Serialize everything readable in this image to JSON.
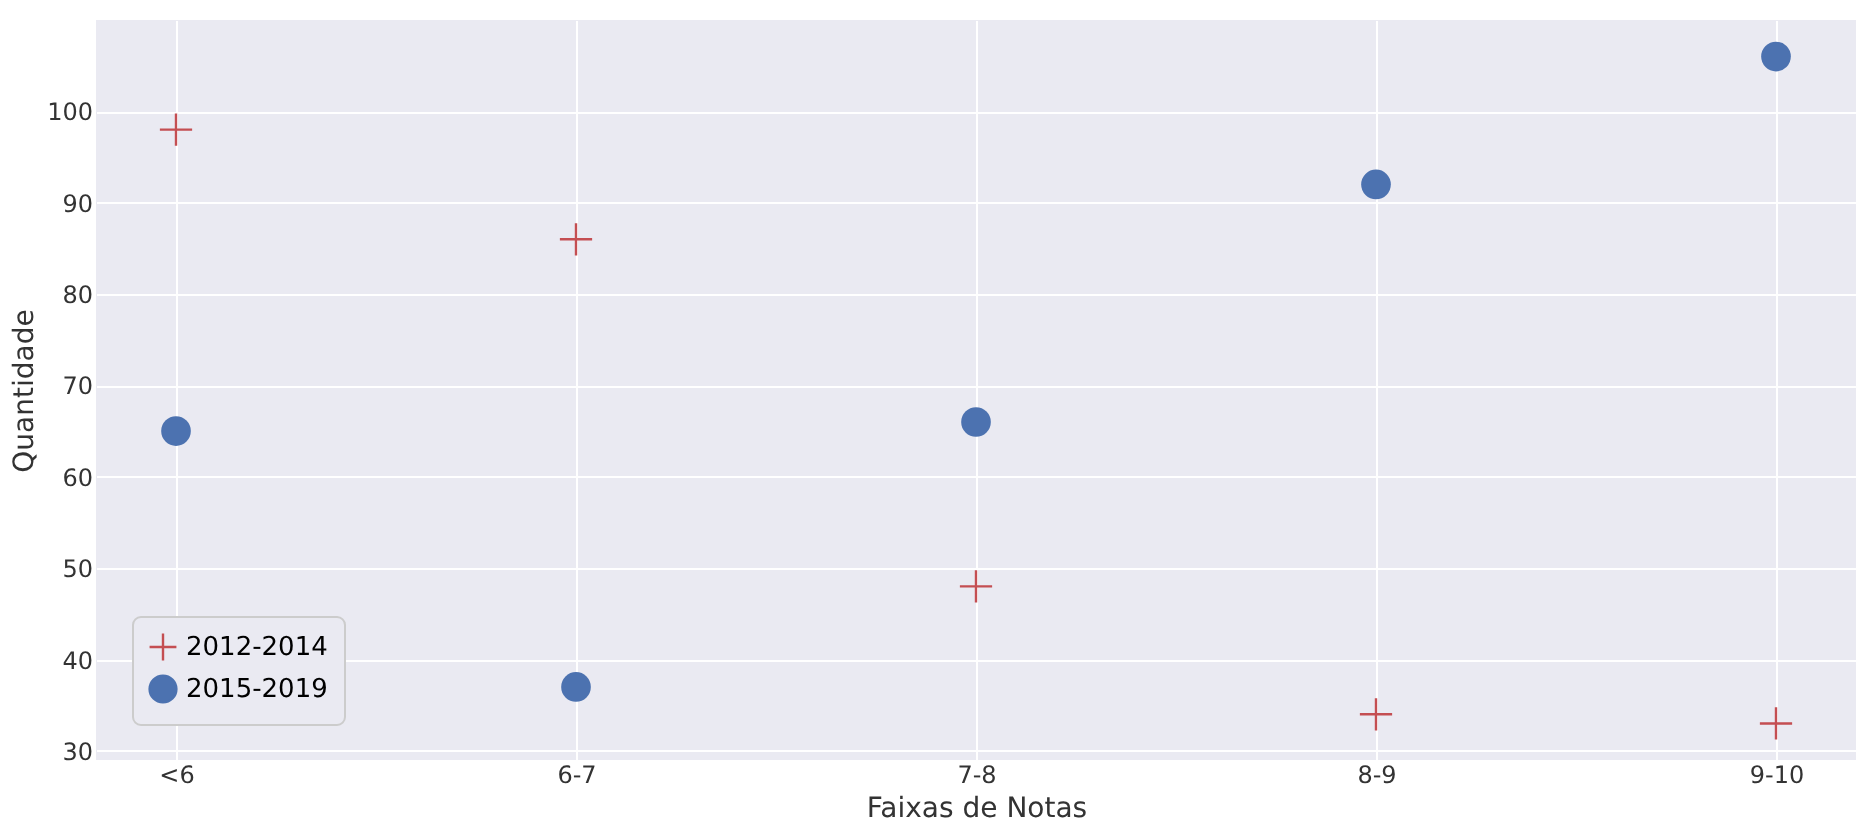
{
  "chart_data": {
    "type": "scatter",
    "xlabel": "Faixas de Notas",
    "ylabel": "Quantidade",
    "categories": [
      "<6",
      "6-7",
      "7-8",
      "8-9",
      "9-10"
    ],
    "series": [
      {
        "name": "2012-2014",
        "color": "#c44e52",
        "marker": "cross",
        "values": [
          98,
          86,
          48,
          34,
          33
        ]
      },
      {
        "name": "2015-2019",
        "color": "#4c72b0",
        "marker": "circle",
        "values": [
          65,
          37,
          66,
          92,
          106
        ]
      }
    ],
    "ylim": [
      29,
      110
    ],
    "yticks": [
      30,
      40,
      50,
      60,
      70,
      80,
      90,
      100
    ],
    "grid": true,
    "legend": "bottom left"
  }
}
